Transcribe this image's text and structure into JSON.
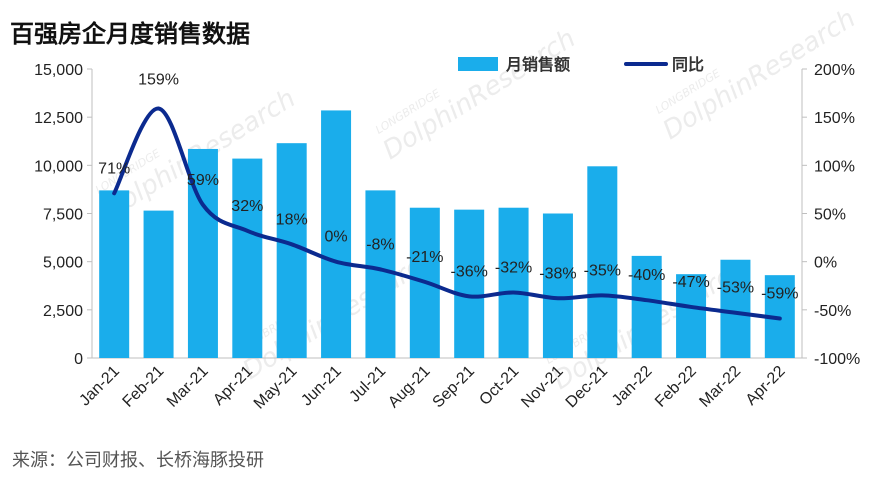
{
  "title": "百强房企月度销售数据",
  "source": "来源：公司财报、长桥海豚投研",
  "watermark": {
    "main": "DolphinResearch",
    "sub": "LONGBRIDGE"
  },
  "colors": {
    "bar": "#1AADEB",
    "line": "#0B2A8F",
    "axis": "#bfbfbf",
    "grid": "#d9d9d9"
  },
  "chart_data": {
    "type": "bar+line",
    "categories": [
      "Jan-21",
      "Feb-21",
      "Mar-21",
      "Apr-21",
      "May-21",
      "Jun-21",
      "Jul-21",
      "Aug-21",
      "Sep-21",
      "Oct-21",
      "Nov-21",
      "Dec-21",
      "Jan-22",
      "Feb-22",
      "Mar-22",
      "Apr-22"
    ],
    "series": [
      {
        "name": "月销售额",
        "type": "bar",
        "axis": "left",
        "values": [
          8700,
          7650,
          10850,
          10350,
          11150,
          12850,
          8700,
          7800,
          7700,
          7800,
          7500,
          9950,
          5300,
          4350,
          5100,
          4300
        ]
      },
      {
        "name": "同比",
        "type": "line",
        "axis": "right",
        "values": [
          71,
          159,
          59,
          32,
          18,
          0,
          -8,
          -21,
          -36,
          -32,
          -38,
          -35,
          -40,
          -47,
          -53,
          -59
        ],
        "labels": [
          "71%",
          "159%",
          "59%",
          "32%",
          "18%",
          "0%",
          "-8%",
          "-21%",
          "-36%",
          "-32%",
          "-38%",
          "-35%",
          "-40%",
          "-47%",
          "-53%",
          "-59%"
        ]
      }
    ],
    "y_left": {
      "min": 0,
      "max": 15000,
      "ticks": [
        0,
        2500,
        5000,
        7500,
        10000,
        12500,
        15000
      ],
      "tick_labels": [
        "0",
        "2,500",
        "5,000",
        "7,500",
        "10,000",
        "12,500",
        "15,000"
      ]
    },
    "y_right": {
      "min": -100,
      "max": 200,
      "ticks": [
        -100,
        -50,
        0,
        50,
        100,
        150,
        200
      ],
      "tick_labels": [
        "-100%",
        "-50%",
        "0%",
        "50%",
        "100%",
        "150%",
        "200%"
      ]
    },
    "legend_position": "top-right",
    "grid": false
  }
}
